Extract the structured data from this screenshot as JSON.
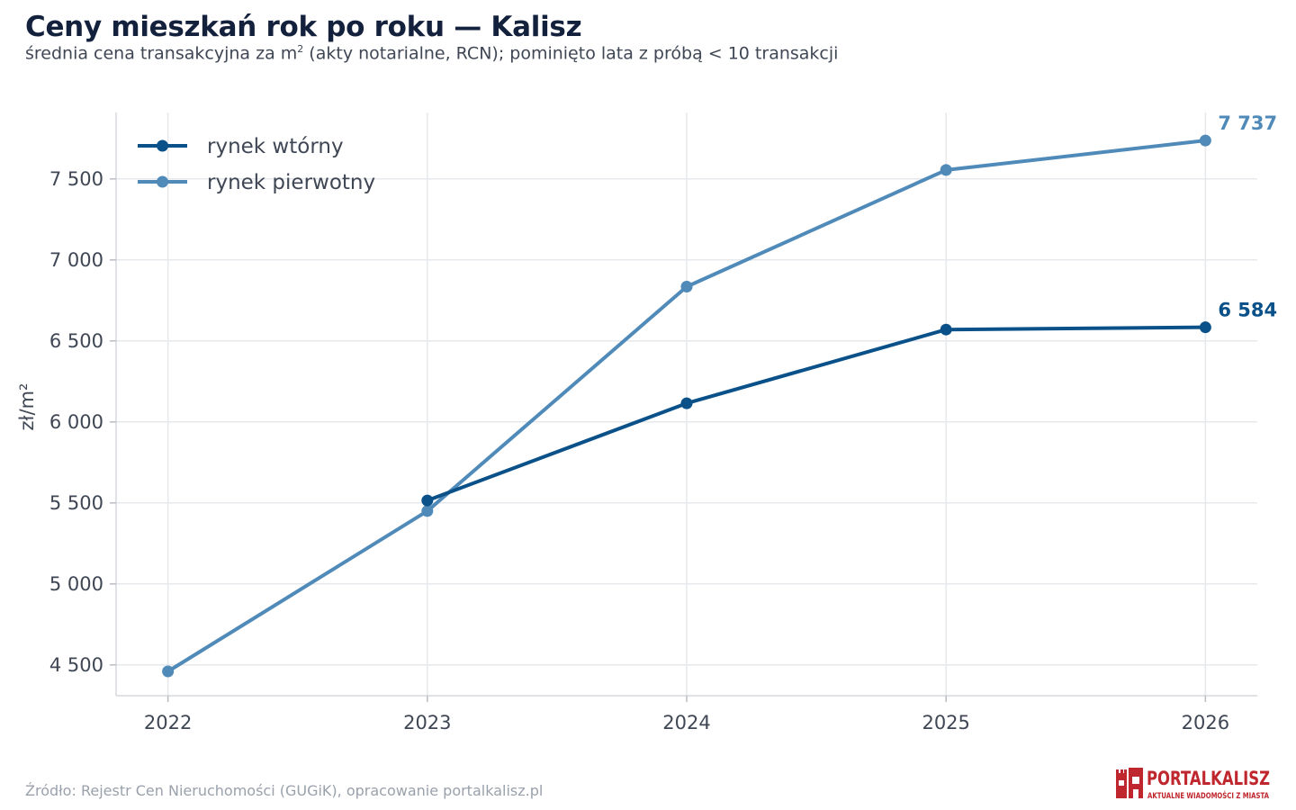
{
  "header": {
    "title": "Ceny mieszkań rok po roku — Kalisz",
    "subtitle_pre": "średnia cena transakcyjna za m",
    "subtitle_sup": "2",
    "subtitle_post": " (akty notarialne, RCN); pominięto lata z próbą < 10 transakcji"
  },
  "footer": {
    "source": "Źródło: Rejestr Cen Nieruchomości (GUGiK), opracowanie portalkalisz.pl",
    "logo_main": "PORTALKALISZ",
    "logo_tagline": "AKTUALNE WIADOMOŚCI Z MIASTA",
    "logo_color": "#c0262d"
  },
  "chart_data": {
    "type": "line",
    "title": "Ceny mieszkań rok po roku — Kalisz",
    "xlabel": "",
    "ylabel": "zł/m²",
    "x": [
      2022,
      2023,
      2024,
      2025,
      2026
    ],
    "xlim": [
      2021.8,
      2026.2
    ],
    "ylim": [
      4310,
      7910
    ],
    "yticks": [
      4500,
      5000,
      5500,
      6000,
      6500,
      7000,
      7500
    ],
    "ytick_labels": [
      "4 500",
      "5 000",
      "5 500",
      "6 000",
      "6 500",
      "7 000",
      "7 500"
    ],
    "xtick_labels": [
      "2022",
      "2023",
      "2024",
      "2025",
      "2026"
    ],
    "grid": true,
    "legend_position": "top-left",
    "series": [
      {
        "name": "rynek wtórny",
        "color": "#0b5189",
        "x": [
          2023,
          2024,
          2025,
          2026
        ],
        "values": [
          5515,
          6115,
          6570,
          6584
        ],
        "end_label": "6 584"
      },
      {
        "name": "rynek pierwotny",
        "color": "#4f8ab9",
        "x": [
          2022,
          2023,
          2024,
          2025,
          2026
        ],
        "values": [
          4460,
          5450,
          6835,
          7555,
          7737
        ],
        "end_label": "7 737"
      }
    ]
  }
}
